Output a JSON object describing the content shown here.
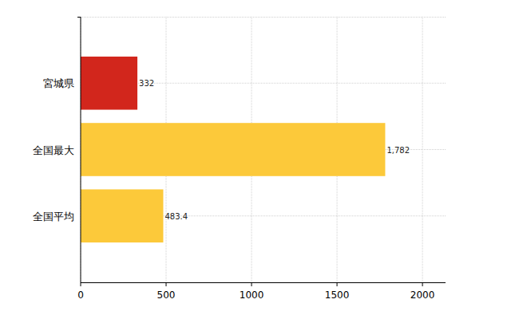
{
  "chart_data": {
    "type": "bar",
    "orientation": "horizontal",
    "categories": [
      "宮城県",
      "全国最大",
      "全国平均"
    ],
    "values": [
      332,
      1782,
      483.4
    ],
    "value_labels": [
      "332",
      "1,782",
      "483.4"
    ],
    "colors": [
      "#d2261c",
      "#fcc93a",
      "#fcc93a"
    ],
    "xlim": [
      0,
      2135
    ],
    "xticks": [
      0,
      500,
      1000,
      1500,
      2000
    ],
    "grid": true,
    "data_labels": true
  }
}
